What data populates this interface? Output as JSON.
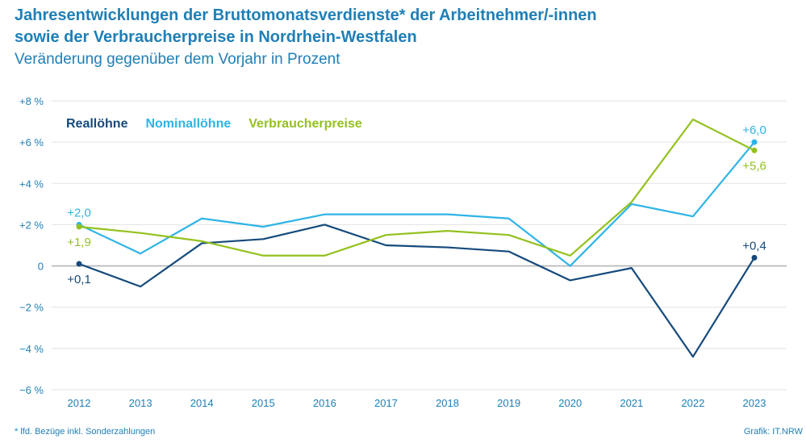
{
  "title_line1": "Jahresentwicklungen der Bruttomonatsverdienste* der Arbeitnehmer/-innen",
  "title_line2": "sowie der Verbraucherpreise in Nordrhein-Westfalen",
  "subtitle": "Veränderung gegenüber dem Vorjahr in Prozent",
  "footnote": "* lfd. Bezüge inkl. Sonderzahlungen",
  "source": "Grafik: IT.NRW",
  "chart_data": {
    "type": "line",
    "x": [
      "2012",
      "2013",
      "2014",
      "2015",
      "2016",
      "2017",
      "2018",
      "2019",
      "2020",
      "2021",
      "2022",
      "2023"
    ],
    "ylim": [
      -6,
      8
    ],
    "yticks": [
      -6,
      -4,
      -2,
      0,
      2,
      4,
      6,
      8
    ],
    "ytick_labels": [
      "−6 %",
      "−4 %",
      "−2 %",
      "0",
      "+2 %",
      "+4 %",
      "+6 %",
      "+8 %"
    ],
    "grid": true,
    "legend_position": "top-left",
    "series": [
      {
        "name": "Reallöhne",
        "color": "#154a7c",
        "values": [
          0.1,
          -1.0,
          1.1,
          1.3,
          2.0,
          1.0,
          0.9,
          0.7,
          -0.7,
          -0.1,
          -4.4,
          0.4
        ],
        "annotations": [
          {
            "index": 0,
            "label": "+0,1",
            "pos": "below"
          },
          {
            "index": 11,
            "label": "+0,4",
            "pos": "above"
          }
        ]
      },
      {
        "name": "Nominallöhne",
        "color": "#2eb4e6",
        "values": [
          2.0,
          0.6,
          2.3,
          1.9,
          2.5,
          2.5,
          2.5,
          2.3,
          0.0,
          3.0,
          2.4,
          6.0
        ],
        "annotations": [
          {
            "index": 0,
            "label": "+2,0",
            "pos": "above"
          },
          {
            "index": 11,
            "label": "+6,0",
            "pos": "above"
          }
        ]
      },
      {
        "name": "Verbraucherpreise",
        "color": "#94c11f",
        "values": [
          1.9,
          1.6,
          1.2,
          0.5,
          0.5,
          1.5,
          1.7,
          1.5,
          0.5,
          3.1,
          7.1,
          5.6
        ],
        "annotations": [
          {
            "index": 0,
            "label": "+1,9",
            "pos": "below"
          },
          {
            "index": 11,
            "label": "+5,6",
            "pos": "below"
          }
        ]
      }
    ]
  }
}
